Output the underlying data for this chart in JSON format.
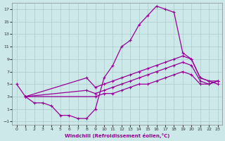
{
  "xlabel": "Windchill (Refroidissement éolien,°C)",
  "ylabel": "",
  "bg_color": "#cce8e8",
  "grid_color": "#aacccc",
  "line_color": "#990099",
  "xlim": [
    -0.5,
    23.5
  ],
  "ylim": [
    -1.5,
    18
  ],
  "xticks": [
    0,
    1,
    2,
    3,
    4,
    5,
    6,
    7,
    8,
    9,
    10,
    11,
    12,
    13,
    14,
    15,
    16,
    17,
    18,
    19,
    20,
    21,
    22,
    23
  ],
  "yticks": [
    -1,
    1,
    3,
    5,
    7,
    9,
    11,
    13,
    15,
    17
  ],
  "curve1_x": [
    0,
    1,
    2,
    3,
    4,
    5,
    6,
    7,
    8,
    9,
    10,
    11,
    12,
    13,
    14,
    15,
    16,
    17,
    18,
    19,
    20,
    21,
    22,
    23
  ],
  "curve1_y": [
    5,
    3,
    2,
    2,
    1.5,
    0,
    0,
    -0.5,
    -0.5,
    1,
    6,
    8,
    11,
    12,
    14.5,
    16,
    17.5,
    17,
    16.5,
    10,
    9,
    6,
    5.5,
    5
  ],
  "curve2_x": [
    1,
    8,
    9,
    10,
    11,
    12,
    13,
    14,
    15,
    16,
    17,
    18,
    19,
    20,
    21,
    22,
    23
  ],
  "curve2_y": [
    3,
    6,
    4.5,
    5,
    5.5,
    6,
    6.5,
    7,
    7.5,
    8,
    8.5,
    9,
    9.5,
    9,
    6,
    5.5,
    5.5
  ],
  "curve3_x": [
    1,
    8,
    9,
    10,
    11,
    12,
    13,
    14,
    15,
    16,
    17,
    18,
    19,
    20,
    21,
    22,
    23
  ],
  "curve3_y": [
    3,
    4,
    3.5,
    4,
    4.5,
    5,
    5.5,
    6,
    6.5,
    7,
    7.5,
    8,
    8.5,
    8,
    5.5,
    5,
    5.5
  ],
  "curve4_x": [
    1,
    9,
    10,
    11,
    12,
    13,
    14,
    15,
    16,
    17,
    18,
    19,
    20,
    21,
    22,
    23
  ],
  "curve4_y": [
    3,
    3,
    3.5,
    3.5,
    4,
    4.5,
    5,
    5,
    5.5,
    6,
    6.5,
    7,
    6.5,
    5,
    5,
    5.5
  ]
}
